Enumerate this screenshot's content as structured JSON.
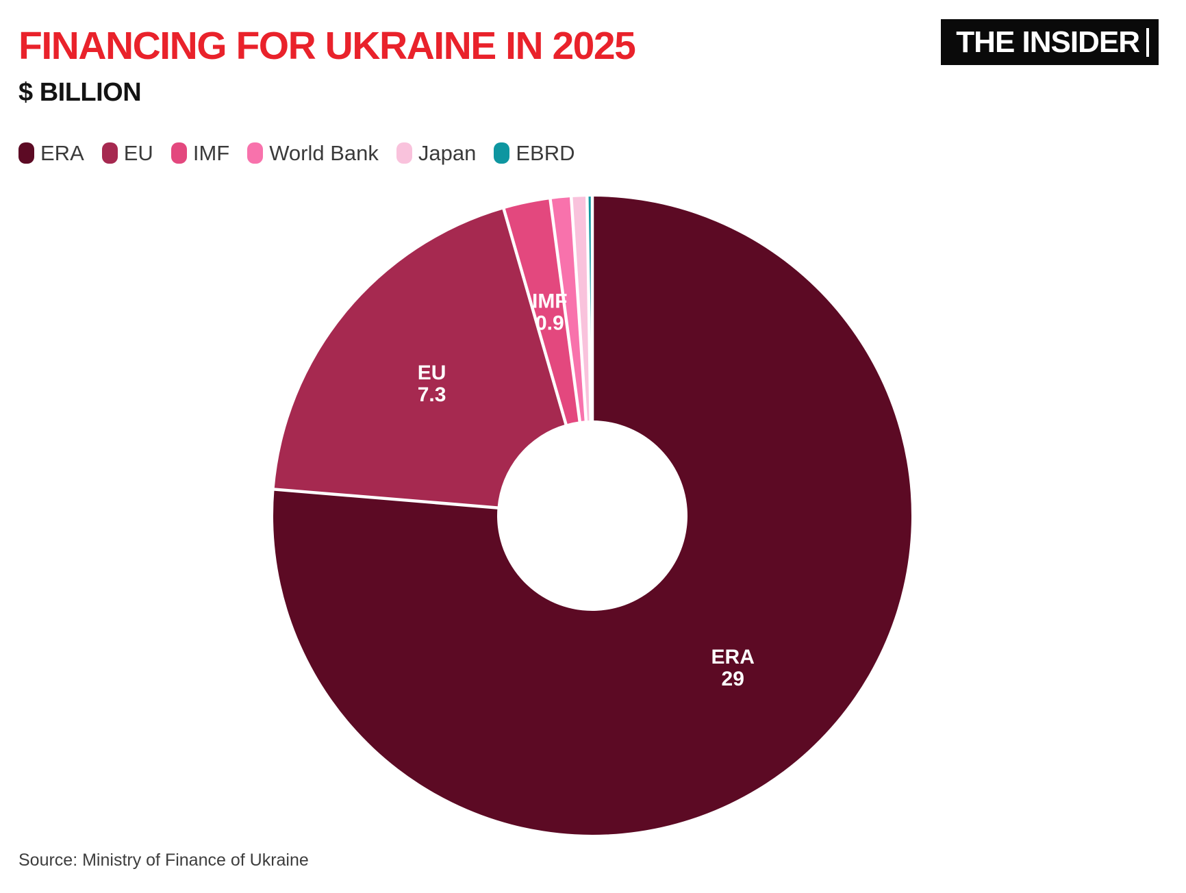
{
  "header": {
    "title": "FINANCING FOR UKRAINE IN 2025",
    "subtitle": "$ BILLION",
    "logo_text": "THE INSIDER"
  },
  "chart_data": {
    "type": "pie",
    "subtype": "donut",
    "title": "FINANCING FOR UKRAINE IN 2025",
    "units": "$ billion",
    "start_angle_deg": 0,
    "direction": "clockwise",
    "total": 38.0,
    "legend_position": "top-left",
    "series": [
      {
        "name": "ERA",
        "value": 29,
        "color": "#5C0A24",
        "label_visible": true
      },
      {
        "name": "EU",
        "value": 7.3,
        "color": "#A62950",
        "label_visible": true
      },
      {
        "name": "IMF",
        "value": 0.9,
        "color": "#E3487E",
        "label_visible": true
      },
      {
        "name": "World Bank",
        "value": 0.4,
        "color": "#F872AC",
        "label_visible": false
      },
      {
        "name": "Japan",
        "value": 0.3,
        "color": "#F9C2DC",
        "label_visible": false
      },
      {
        "name": "EBRD",
        "value": 0.1,
        "color": "#0E96A0",
        "label_visible": false
      }
    ]
  },
  "footer": {
    "source": "Source: Ministry of Finance of Ukraine"
  }
}
